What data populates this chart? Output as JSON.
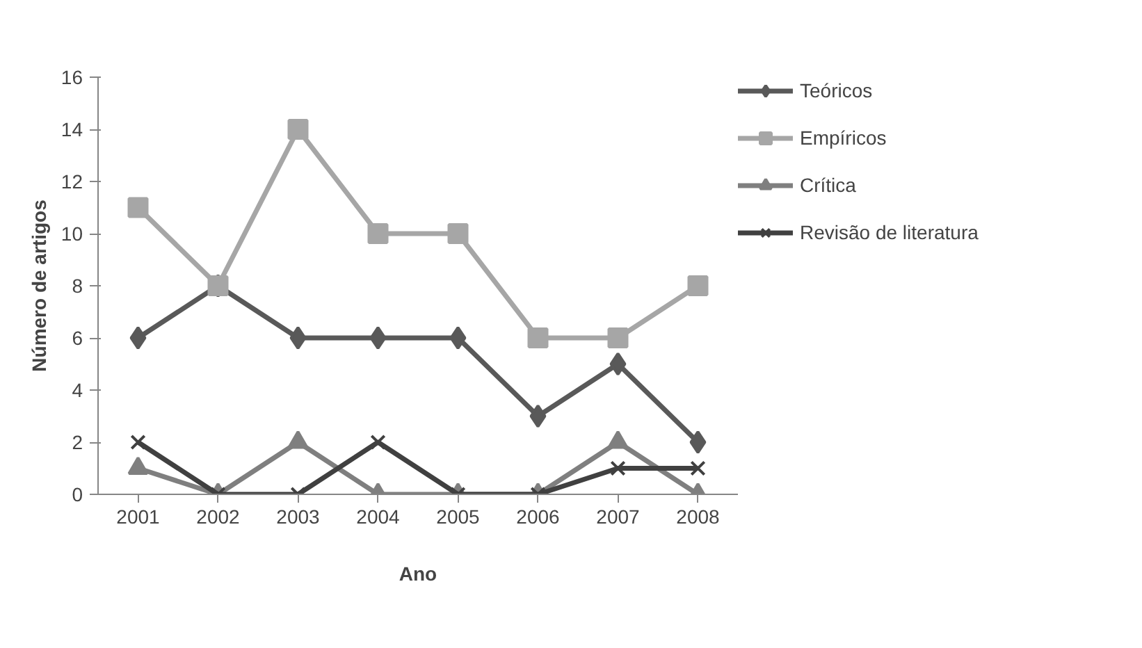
{
  "chart_data": {
    "type": "line",
    "xlabel": "Ano",
    "ylabel": "Número de artigos",
    "categories": [
      "2001",
      "2002",
      "2003",
      "2004",
      "2005",
      "2006",
      "2007",
      "2008"
    ],
    "series": [
      {
        "name": "Teóricos",
        "color": "#595959",
        "marker": "diamond",
        "values": [
          6,
          8,
          6,
          6,
          6,
          3,
          5,
          2
        ]
      },
      {
        "name": "Empíricos",
        "color": "#a6a6a6",
        "marker": "square",
        "values": [
          11,
          8,
          14,
          10,
          10,
          6,
          6,
          8
        ]
      },
      {
        "name": "Crítica",
        "color": "#7f7f7f",
        "marker": "triangle",
        "values": [
          1,
          0,
          2,
          0,
          0,
          0,
          2,
          0
        ]
      },
      {
        "name": "Revisão de literatura",
        "color": "#404040",
        "marker": "cross",
        "values": [
          2,
          0,
          0,
          2,
          0,
          0,
          1,
          1
        ]
      }
    ],
    "ylim": [
      0,
      16
    ],
    "yticks": [
      0,
      2,
      4,
      6,
      8,
      10,
      12,
      14,
      16
    ],
    "grid": false,
    "legend": "top right",
    "line_style": "solid"
  }
}
